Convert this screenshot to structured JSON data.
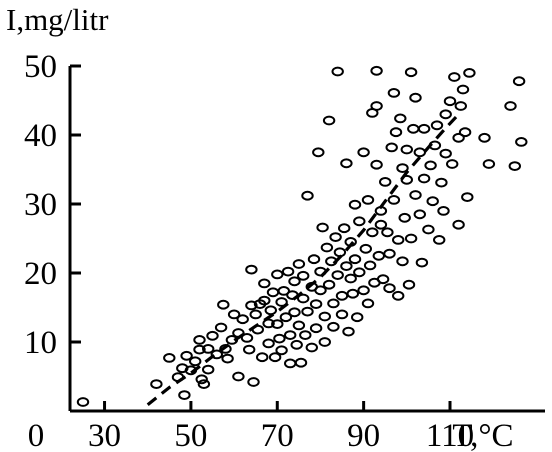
{
  "chart_data": {
    "type": "scatter",
    "title": "",
    "ylabel": "I,mg/litr",
    "xlabel": "T,°C",
    "origin_label": "0",
    "xlim": [
      22,
      132
    ],
    "ylim": [
      0,
      50
    ],
    "x_ticks": [
      30,
      50,
      70,
      90,
      110
    ],
    "x_tick_labels": [
      "30",
      "50",
      "70",
      "90",
      "110"
    ],
    "y_ticks": [
      10,
      20,
      30,
      40,
      50
    ],
    "y_tick_labels": [
      "10",
      "20",
      "30",
      "40",
      "50"
    ],
    "grid": false,
    "legend": "none",
    "colors": {
      "axis": "#000000",
      "markers": "#000000",
      "trend": "#000000"
    },
    "series": [
      {
        "type": "scatter",
        "marker": "open-circle",
        "points": [
          [
            25,
            1.3
          ],
          [
            42,
            3.9
          ],
          [
            45,
            7.7
          ],
          [
            47,
            4.9
          ],
          [
            48,
            6.2
          ],
          [
            48.5,
            2.3
          ],
          [
            49,
            8.0
          ],
          [
            50,
            5.9
          ],
          [
            51,
            7.2
          ],
          [
            52,
            8.9
          ],
          [
            52,
            10.3
          ],
          [
            52.5,
            4.6
          ],
          [
            53,
            3.9
          ],
          [
            54,
            6.0
          ],
          [
            54,
            9.0
          ],
          [
            55,
            10.9
          ],
          [
            56,
            8.2
          ],
          [
            57,
            12.1
          ],
          [
            57.5,
            15.4
          ],
          [
            58,
            9.0
          ],
          [
            58.5,
            7.6
          ],
          [
            59.5,
            10.3
          ],
          [
            60,
            14.0
          ],
          [
            61,
            11.3
          ],
          [
            61,
            5.0
          ],
          [
            62,
            13.3
          ],
          [
            63,
            10.6
          ],
          [
            63.5,
            8.9
          ],
          [
            64,
            15.3
          ],
          [
            64,
            20.5
          ],
          [
            64.5,
            4.2
          ],
          [
            65,
            14.0
          ],
          [
            65.5,
            11.8
          ],
          [
            66,
            15.5
          ],
          [
            66.5,
            7.8
          ],
          [
            67,
            16.0
          ],
          [
            67,
            18.5
          ],
          [
            68,
            12.7
          ],
          [
            68,
            9.8
          ],
          [
            68.5,
            14.6
          ],
          [
            69,
            17.2
          ],
          [
            69.5,
            7.8
          ],
          [
            70,
            12.6
          ],
          [
            70,
            19.8
          ],
          [
            70.5,
            10.5
          ],
          [
            71,
            15.8
          ],
          [
            71,
            8.8
          ],
          [
            71.5,
            17.4
          ],
          [
            72,
            13.6
          ],
          [
            72.5,
            20.2
          ],
          [
            73,
            11.0
          ],
          [
            73,
            6.9
          ],
          [
            73.5,
            16.8
          ],
          [
            74,
            18.8
          ],
          [
            74,
            14.3
          ],
          [
            74.5,
            9.6
          ],
          [
            75,
            21.3
          ],
          [
            75,
            12.4
          ],
          [
            75.5,
            7.0
          ],
          [
            76,
            16.3
          ],
          [
            76,
            19.6
          ],
          [
            76.5,
            11.0
          ],
          [
            77,
            31.2
          ],
          [
            77,
            14.4
          ],
          [
            78,
            18.0
          ],
          [
            78,
            9.2
          ],
          [
            78.5,
            22.0
          ],
          [
            79,
            15.5
          ],
          [
            79,
            12.0
          ],
          [
            79.5,
            37.5
          ],
          [
            80,
            20.2
          ],
          [
            80,
            17.5
          ],
          [
            80.5,
            26.6
          ],
          [
            81,
            13.7
          ],
          [
            81,
            10.0
          ],
          [
            81.5,
            23.7
          ],
          [
            82,
            18.3
          ],
          [
            82,
            42.1
          ],
          [
            82.5,
            21.7
          ],
          [
            83,
            15.6
          ],
          [
            83,
            12.2
          ],
          [
            83.5,
            25.2
          ],
          [
            84,
            49.2
          ],
          [
            84,
            19.7
          ],
          [
            84.5,
            23.0
          ],
          [
            85,
            16.7
          ],
          [
            85,
            14.0
          ],
          [
            85.5,
            26.5
          ],
          [
            86,
            35.9
          ],
          [
            86,
            21.0
          ],
          [
            86.5,
            11.5
          ],
          [
            87,
            19.2
          ],
          [
            87,
            24.5
          ],
          [
            87.5,
            17.0
          ],
          [
            88,
            29.9
          ],
          [
            88,
            22.0
          ],
          [
            88.5,
            13.6
          ],
          [
            89,
            20.1
          ],
          [
            89,
            27.5
          ],
          [
            90,
            37.5
          ],
          [
            90,
            17.5
          ],
          [
            90.5,
            23.5
          ],
          [
            91,
            30.6
          ],
          [
            91,
            15.6
          ],
          [
            91.5,
            21.1
          ],
          [
            92,
            43.2
          ],
          [
            92,
            25.9
          ],
          [
            92.5,
            18.6
          ],
          [
            93,
            35.7
          ],
          [
            93,
            44.2
          ],
          [
            93,
            49.3
          ],
          [
            93.5,
            22.5
          ],
          [
            94,
            29.0
          ],
          [
            94,
            27.0
          ],
          [
            94.5,
            19.1
          ],
          [
            95,
            33.2
          ],
          [
            95.5,
            25.9
          ],
          [
            96,
            22.8
          ],
          [
            96,
            17.8
          ],
          [
            96.5,
            38.2
          ],
          [
            97,
            46.1
          ],
          [
            97,
            30.6
          ],
          [
            97.5,
            40.4
          ],
          [
            98,
            24.8
          ],
          [
            98,
            16.7
          ],
          [
            98.5,
            42.4
          ],
          [
            99,
            35.2
          ],
          [
            99,
            21.7
          ],
          [
            99.5,
            28.0
          ],
          [
            100,
            33.5
          ],
          [
            100,
            37.9
          ],
          [
            100.5,
            18.3
          ],
          [
            101,
            49.1
          ],
          [
            101,
            25.0
          ],
          [
            101.5,
            40.9
          ],
          [
            102,
            31.3
          ],
          [
            102,
            45.4
          ],
          [
            103,
            28.5
          ],
          [
            103,
            37.5
          ],
          [
            103.5,
            21.5
          ],
          [
            104,
            33.7
          ],
          [
            104,
            40.9
          ],
          [
            105,
            26.3
          ],
          [
            105.5,
            35.6
          ],
          [
            106,
            30.4
          ],
          [
            106.5,
            38.5
          ],
          [
            107,
            41.4
          ],
          [
            107.5,
            24.8
          ],
          [
            108,
            33.1
          ],
          [
            108.5,
            29.0
          ],
          [
            109,
            37.3
          ],
          [
            109,
            43.0
          ],
          [
            110,
            44.9
          ],
          [
            110.5,
            35.8
          ],
          [
            111,
            48.4
          ],
          [
            112,
            27.0
          ],
          [
            112,
            39.6
          ],
          [
            112.5,
            44.2
          ],
          [
            113,
            46.6
          ],
          [
            113.5,
            40.4
          ],
          [
            114,
            31.0
          ],
          [
            114.5,
            49.0
          ],
          [
            118,
            39.6
          ],
          [
            119,
            35.8
          ],
          [
            124,
            44.2
          ],
          [
            125,
            35.5
          ],
          [
            126,
            47.8
          ],
          [
            126.5,
            39.0
          ]
        ]
      },
      {
        "type": "line",
        "style": "dashed",
        "points": [
          [
            40,
            0.9
          ],
          [
            45,
            3.4
          ],
          [
            50,
            5.5
          ],
          [
            55,
            7.9
          ],
          [
            60,
            10.2
          ],
          [
            65,
            12.3
          ],
          [
            70,
            14.4
          ],
          [
            75,
            16.8
          ],
          [
            80,
            19.4
          ],
          [
            85,
            22.6
          ],
          [
            90,
            26.2
          ],
          [
            95,
            30.4
          ],
          [
            100,
            34.6
          ],
          [
            105,
            38.2
          ],
          [
            109,
            41.0
          ],
          [
            112,
            43.0
          ]
        ]
      }
    ]
  }
}
